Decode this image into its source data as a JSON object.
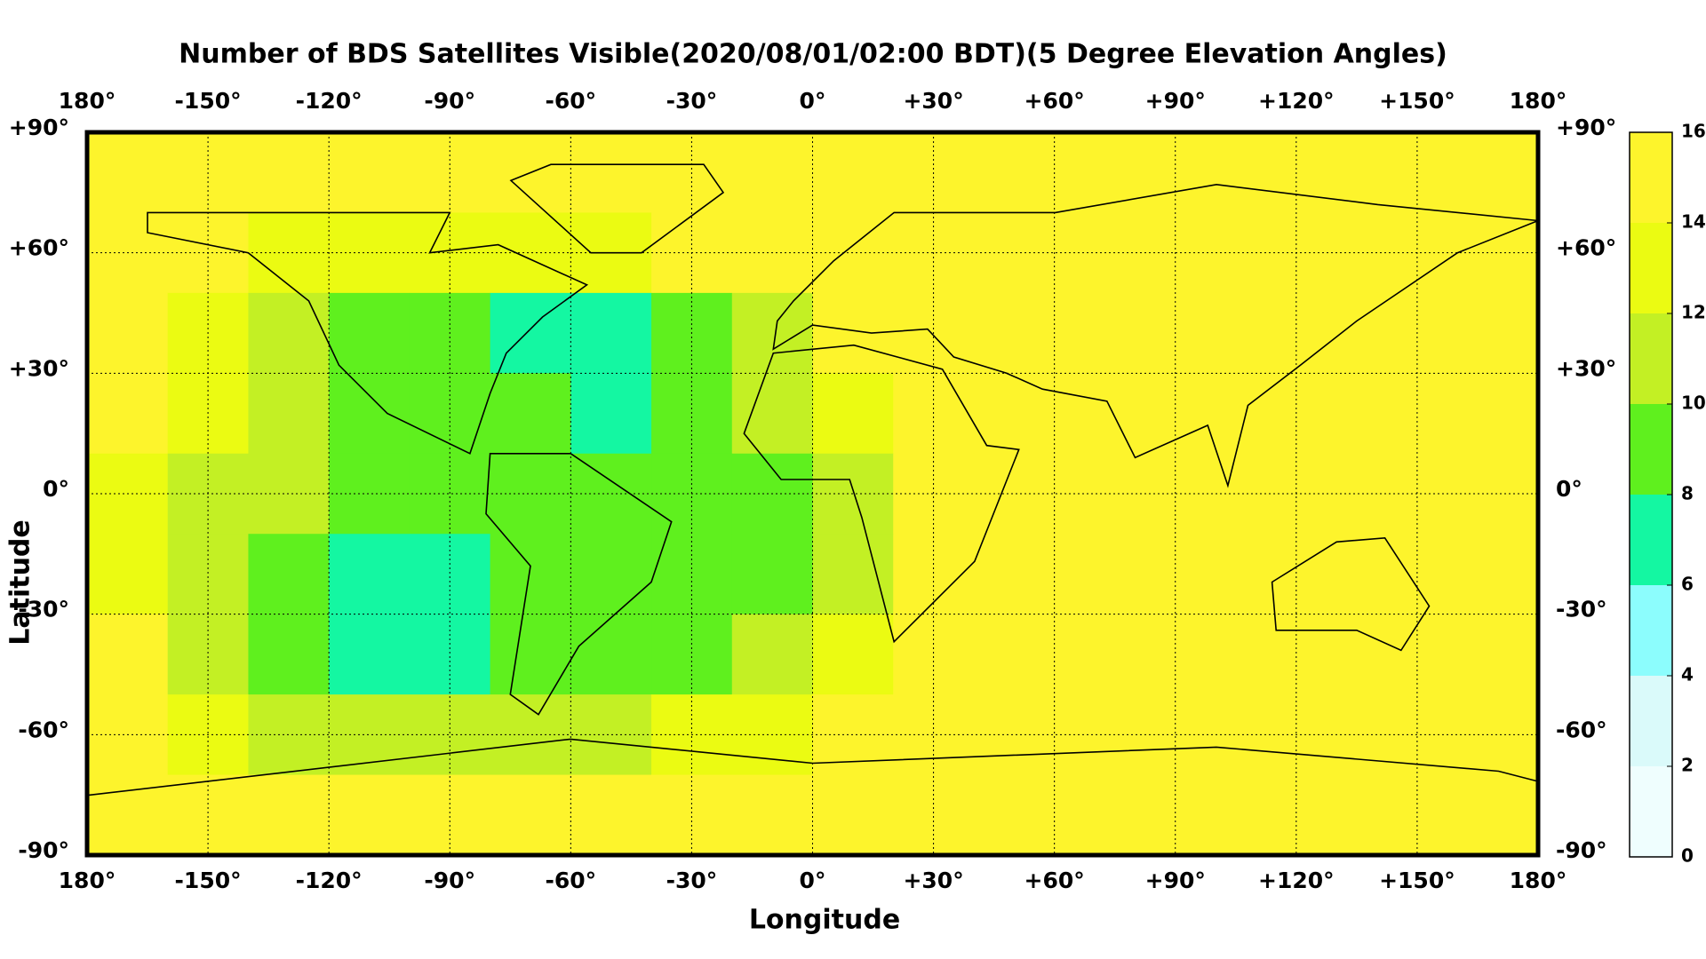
{
  "chart_data": {
    "type": "heatmap",
    "title": "Number of BDS Satellites Visible(2020/08/01/02:00 BDT)(5 Degree Elevation Angles)",
    "x_label": "Longitude",
    "y_label": "Latitude",
    "xlim": [
      -180,
      180
    ],
    "ylim": [
      -90,
      90
    ],
    "xticks": [
      {
        "value": -180,
        "label": "180°"
      },
      {
        "value": -150,
        "label": "-150°"
      },
      {
        "value": -120,
        "label": "-120°"
      },
      {
        "value": -90,
        "label": "-90°"
      },
      {
        "value": -60,
        "label": "-60°"
      },
      {
        "value": -30,
        "label": "-30°"
      },
      {
        "value": 0,
        "label": "0°"
      },
      {
        "value": 30,
        "label": "+30°"
      },
      {
        "value": 60,
        "label": "+60°"
      },
      {
        "value": 90,
        "label": "+90°"
      },
      {
        "value": 120,
        "label": "+120°"
      },
      {
        "value": 150,
        "label": "+150°"
      },
      {
        "value": 180,
        "label": "180°"
      }
    ],
    "yticks": [
      {
        "value": 90,
        "label": "+90°"
      },
      {
        "value": 60,
        "label": "+60°"
      },
      {
        "value": 30,
        "label": "+30°"
      },
      {
        "value": 0,
        "label": "0°"
      },
      {
        "value": -30,
        "label": "-30°"
      },
      {
        "value": -60,
        "label": "-60°"
      },
      {
        "value": -90,
        "label": "-90°"
      }
    ],
    "grid": true,
    "x": [
      -170,
      -150,
      -130,
      -110,
      -90,
      -70,
      -50,
      -30,
      -10,
      10,
      30,
      50,
      70,
      90,
      110,
      130,
      150,
      170
    ],
    "y": [
      80,
      60,
      40,
      20,
      0,
      -20,
      -40,
      -60,
      -80
    ],
    "z": [
      [
        15,
        15,
        15,
        15,
        15,
        15,
        15,
        15,
        15,
        15,
        15,
        15,
        15,
        15,
        15,
        15,
        15,
        15
      ],
      [
        15,
        15,
        13,
        13,
        12,
        12,
        13,
        14,
        15,
        15,
        15,
        15,
        15,
        15,
        15,
        15,
        15,
        15
      ],
      [
        15,
        13,
        11,
        9,
        9,
        7,
        7,
        9,
        11,
        15,
        15,
        15,
        15,
        15,
        15,
        15,
        15,
        15
      ],
      [
        14,
        12,
        11,
        9,
        9,
        9,
        7,
        9,
        11,
        13,
        15,
        15,
        15,
        15,
        15,
        15,
        15,
        15
      ],
      [
        13,
        11,
        11,
        9,
        9,
        9,
        9,
        9,
        9,
        11,
        15,
        15,
        15,
        15,
        15,
        15,
        15,
        15
      ],
      [
        13,
        11,
        9,
        7,
        7,
        9,
        9,
        9,
        9,
        11,
        15,
        15,
        15,
        15,
        15,
        15,
        15,
        15
      ],
      [
        14,
        11,
        9,
        7,
        7,
        9,
        9,
        9,
        11,
        13,
        15,
        15,
        15,
        15,
        15,
        15,
        15,
        15
      ],
      [
        15,
        13,
        11,
        11,
        11,
        11,
        11,
        13,
        13,
        15,
        15,
        15,
        15,
        15,
        15,
        15,
        15,
        15
      ],
      [
        15,
        15,
        15,
        15,
        15,
        15,
        15,
        15,
        15,
        15,
        15,
        15,
        15,
        15,
        15,
        15,
        15,
        15
      ]
    ],
    "colorbar": {
      "ticks": [
        0,
        2,
        4,
        6,
        8,
        10,
        12,
        14,
        16
      ],
      "colors": [
        "#effefe",
        "#dafafa",
        "#8cfdfd",
        "#14f7a2",
        "#5ff01e",
        "#c3f024",
        "#ebfb12",
        "#fdf42c"
      ]
    }
  }
}
